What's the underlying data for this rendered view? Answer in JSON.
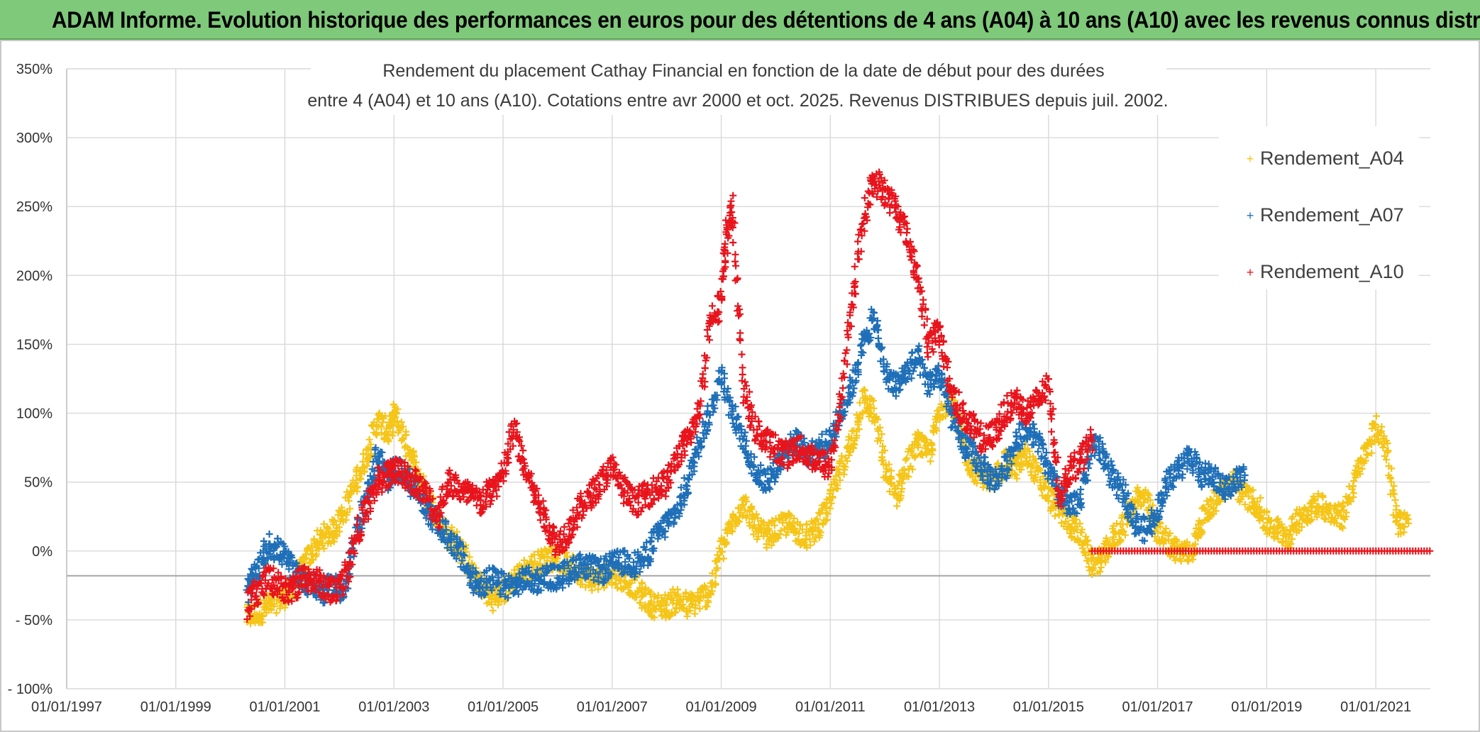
{
  "header": {
    "title": "ADAM Informe. Evolution historique des performances en euros pour des détentions de 4 ans (A04) à 10 ans (A10) avec les revenus connus distribués"
  },
  "colors": {
    "banner": "#7fc97a",
    "A04": "#f5c518",
    "A07": "#1f6fb8",
    "A10": "#e8141c",
    "grid": "#d9d9d9"
  },
  "chart_data": {
    "type": "scatter",
    "title_lines": [
      "Rendement du placement Cathay Financial  en fonction de la date de début pour des durées",
      "entre 4 (A04) et 10 ans (A10). Cotations entre avr 2000 et oct. 2025. Revenus DISTRIBUES depuis juil. 2002."
    ],
    "xlabel": "",
    "ylabel": "",
    "x_range": [
      1997.0,
      2022.0
    ],
    "ylim": [
      -100,
      350
    ],
    "y_ticks": [
      {
        "value": 350,
        "label": "350%"
      },
      {
        "value": 300,
        "label": "300%"
      },
      {
        "value": 250,
        "label": "250%"
      },
      {
        "value": 200,
        "label": "200%"
      },
      {
        "value": 150,
        "label": "150%"
      },
      {
        "value": 100,
        "label": "100%"
      },
      {
        "value": 50,
        "label": "50%"
      },
      {
        "value": 0,
        "label": "0%"
      },
      {
        "value": -50,
        "label": "- 50%"
      },
      {
        "value": -100,
        "label": "- 100%"
      }
    ],
    "x_ticks": [
      {
        "value": 1997,
        "label": "01/01/1997"
      },
      {
        "value": 1999,
        "label": "01/01/1999"
      },
      {
        "value": 2001,
        "label": "01/01/2001"
      },
      {
        "value": 2003,
        "label": "01/01/2003"
      },
      {
        "value": 2005,
        "label": "01/01/2005"
      },
      {
        "value": 2007,
        "label": "01/01/2007"
      },
      {
        "value": 2009,
        "label": "01/01/2009"
      },
      {
        "value": 2011,
        "label": "01/01/2011"
      },
      {
        "value": 2013,
        "label": "01/01/2013"
      },
      {
        "value": 2015,
        "label": "01/01/2015"
      },
      {
        "value": 2017,
        "label": "01/01/2017"
      },
      {
        "value": 2019,
        "label": "01/01/2019"
      },
      {
        "value": 2021,
        "label": "01/01/2021"
      }
    ],
    "reference_line_y": -18,
    "legend_position": "top-right",
    "series": [
      {
        "name": "Rendement_A04",
        "key": "A04",
        "marker": "+",
        "x": [
          2000.3,
          2000.5,
          2000.7,
          2000.9,
          2001.1,
          2001.3,
          2001.5,
          2001.7,
          2001.9,
          2002.1,
          2002.3,
          2002.5,
          2002.7,
          2002.9,
          2003.0,
          2003.2,
          2003.4,
          2003.6,
          2003.8,
          2004.0,
          2004.2,
          2004.4,
          2004.6,
          2004.8,
          2005.0,
          2005.2,
          2005.4,
          2005.6,
          2005.8,
          2006.0,
          2006.2,
          2006.4,
          2006.6,
          2006.8,
          2007.0,
          2007.2,
          2007.4,
          2007.6,
          2007.8,
          2008.0,
          2008.2,
          2008.4,
          2008.6,
          2008.8,
          2009.0,
          2009.2,
          2009.4,
          2009.6,
          2009.8,
          2010.0,
          2010.2,
          2010.4,
          2010.6,
          2010.8,
          2011.0,
          2011.2,
          2011.4,
          2011.6,
          2011.8,
          2012.0,
          2012.2,
          2012.4,
          2012.6,
          2012.8,
          2013.0,
          2013.2,
          2013.4,
          2013.6,
          2013.8,
          2014.0,
          2014.2,
          2014.4,
          2014.6,
          2014.8,
          2015.0,
          2015.2,
          2015.4,
          2015.6,
          2015.8,
          2016.0,
          2016.2,
          2016.4,
          2016.6,
          2016.8,
          2017.0,
          2017.2,
          2017.4,
          2017.6,
          2017.8,
          2018.0,
          2018.2,
          2018.4,
          2018.6,
          2018.8,
          2019.0,
          2019.2,
          2019.4,
          2019.6,
          2019.8,
          2020.0,
          2020.2,
          2020.4,
          2020.6,
          2020.8,
          2021.0,
          2021.2,
          2021.4,
          2021.6
        ],
        "y": [
          -48,
          -45,
          -40,
          -35,
          -30,
          -15,
          0,
          10,
          15,
          30,
          50,
          70,
          95,
          85,
          100,
          80,
          60,
          40,
          25,
          10,
          5,
          -15,
          -25,
          -35,
          -30,
          -20,
          -15,
          -10,
          -5,
          -5,
          -10,
          -15,
          -20,
          -20,
          -15,
          -20,
          -25,
          -35,
          -40,
          -40,
          -35,
          -40,
          -35,
          -30,
          0,
          20,
          35,
          20,
          10,
          15,
          20,
          15,
          10,
          20,
          35,
          60,
          80,
          110,
          100,
          60,
          40,
          60,
          80,
          70,
          100,
          115,
          80,
          60,
          55,
          50,
          65,
          60,
          70,
          55,
          40,
          30,
          20,
          10,
          -10,
          -5,
          10,
          20,
          40,
          35,
          15,
          5,
          0,
          -2,
          20,
          35,
          45,
          50,
          40,
          35,
          20,
          15,
          10,
          25,
          30,
          35,
          25,
          25,
          50,
          70,
          90,
          75,
          20,
          20
        ],
        "spread": 9
      },
      {
        "name": "Rendement_A07",
        "key": "A07",
        "marker": "+",
        "x": [
          2000.3,
          2000.5,
          2000.7,
          2000.9,
          2001.1,
          2001.3,
          2001.5,
          2001.7,
          2001.9,
          2002.1,
          2002.3,
          2002.5,
          2002.7,
          2002.9,
          2003.0,
          2003.2,
          2003.4,
          2003.6,
          2003.8,
          2004.0,
          2004.2,
          2004.4,
          2004.6,
          2004.8,
          2005.0,
          2005.2,
          2005.4,
          2005.6,
          2005.8,
          2006.0,
          2006.2,
          2006.4,
          2006.6,
          2006.8,
          2007.0,
          2007.2,
          2007.4,
          2007.6,
          2007.8,
          2008.0,
          2008.2,
          2008.4,
          2008.6,
          2008.8,
          2009.0,
          2009.2,
          2009.4,
          2009.6,
          2009.8,
          2010.0,
          2010.2,
          2010.4,
          2010.6,
          2010.8,
          2011.0,
          2011.2,
          2011.4,
          2011.6,
          2011.8,
          2012.0,
          2012.2,
          2012.4,
          2012.6,
          2012.8,
          2013.0,
          2013.2,
          2013.4,
          2013.6,
          2013.8,
          2014.0,
          2014.2,
          2014.4,
          2014.6,
          2014.8,
          2015.0,
          2015.2,
          2015.4,
          2015.6,
          2015.8,
          2016.0,
          2016.2,
          2016.4,
          2016.6,
          2016.8,
          2017.0,
          2017.2,
          2017.4,
          2017.6,
          2017.8,
          2018.0,
          2018.2,
          2018.4,
          2018.6
        ],
        "y": [
          -30,
          -15,
          5,
          0,
          -10,
          -20,
          -25,
          -30,
          -25,
          -30,
          10,
          40,
          70,
          50,
          60,
          55,
          45,
          30,
          20,
          10,
          0,
          -20,
          -25,
          -20,
          -25,
          -25,
          -20,
          -22,
          -18,
          -20,
          -15,
          -10,
          -12,
          -15,
          -10,
          -8,
          -10,
          -5,
          10,
          20,
          30,
          50,
          80,
          100,
          130,
          100,
          80,
          60,
          50,
          60,
          75,
          80,
          70,
          75,
          80,
          100,
          120,
          150,
          170,
          130,
          120,
          130,
          140,
          120,
          130,
          100,
          80,
          70,
          60,
          50,
          60,
          80,
          90,
          80,
          60,
          40,
          30,
          40,
          80,
          70,
          50,
          40,
          20,
          15,
          30,
          50,
          60,
          70,
          55,
          55,
          45,
          50,
          55
        ],
        "spread": 9
      },
      {
        "name": "Rendement_A10",
        "key": "A10",
        "marker": "+",
        "x": [
          2000.3,
          2000.5,
          2000.7,
          2000.9,
          2001.1,
          2001.3,
          2001.5,
          2001.7,
          2001.9,
          2002.1,
          2002.3,
          2002.5,
          2002.7,
          2002.9,
          2003.0,
          2003.2,
          2003.4,
          2003.6,
          2003.8,
          2004.0,
          2004.2,
          2004.4,
          2004.6,
          2004.8,
          2005.0,
          2005.2,
          2005.4,
          2005.6,
          2005.8,
          2006.0,
          2006.2,
          2006.4,
          2006.6,
          2006.8,
          2007.0,
          2007.2,
          2007.4,
          2007.6,
          2007.8,
          2008.0,
          2008.2,
          2008.4,
          2008.6,
          2008.8,
          2009.0,
          2009.1,
          2009.2,
          2009.4,
          2009.6,
          2009.8,
          2010.0,
          2010.2,
          2010.4,
          2010.6,
          2010.8,
          2011.0,
          2011.2,
          2011.4,
          2011.6,
          2011.8,
          2012.0,
          2012.2,
          2012.4,
          2012.6,
          2012.8,
          2013.0,
          2013.2,
          2013.4,
          2013.6,
          2013.8,
          2014.0,
          2014.2,
          2014.4,
          2014.6,
          2014.8,
          2015.0,
          2015.2,
          2015.4,
          2015.6,
          2015.8
        ],
        "y": [
          -40,
          -30,
          -20,
          -25,
          -30,
          -20,
          -20,
          -25,
          -30,
          -20,
          10,
          30,
          50,
          55,
          60,
          55,
          50,
          40,
          25,
          50,
          45,
          40,
          35,
          45,
          55,
          90,
          60,
          40,
          20,
          5,
          15,
          30,
          40,
          50,
          60,
          45,
          35,
          40,
          45,
          50,
          70,
          80,
          100,
          170,
          180,
          230,
          250,
          120,
          90,
          80,
          75,
          70,
          75,
          70,
          65,
          60,
          110,
          180,
          240,
          270,
          260,
          250,
          230,
          200,
          150,
          160,
          120,
          100,
          90,
          80,
          85,
          100,
          110,
          100,
          110,
          120,
          40,
          60,
          65,
          80
        ],
        "spread": 10
      }
    ],
    "a10_zero_run": {
      "x_start": 2015.8,
      "x_end": 2022.0,
      "y": 0
    }
  },
  "legend": {
    "items": [
      {
        "label": "Rendement_A04",
        "color": "#f5c518"
      },
      {
        "label": "Rendement_A07",
        "color": "#1f6fb8"
      },
      {
        "label": "Rendement_A10",
        "color": "#e8141c"
      }
    ]
  }
}
